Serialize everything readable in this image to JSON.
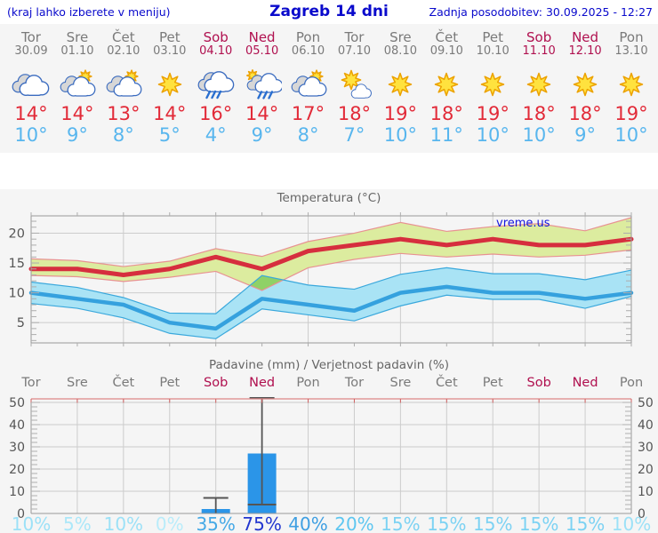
{
  "header": {
    "left_note": "(kraj lahko izberete v meniju)",
    "title": "Zagreb 14 dni",
    "updated": "Zadnja posodobitev: 30.09.2025 - 12:27"
  },
  "ui_colors": {
    "weekday": "#7a7a7a",
    "weekend": "#b0104f",
    "tmax": "#e22a38",
    "tmin": "#58b6ee",
    "header_text": "#0a0acc",
    "axis_label": "#555555",
    "grid": "#cccccc",
    "frame": "#999999"
  },
  "days": [
    {
      "name": "Tor",
      "date": "30.09",
      "weekend": false,
      "icon": "cloudy",
      "tmax": "14°",
      "tmin": "10°"
    },
    {
      "name": "Sre",
      "date": "01.10",
      "weekend": false,
      "icon": "partly",
      "tmax": "14°",
      "tmin": "9°"
    },
    {
      "name": "Čet",
      "date": "02.10",
      "weekend": false,
      "icon": "partly",
      "tmax": "13°",
      "tmin": "8°"
    },
    {
      "name": "Pet",
      "date": "03.10",
      "weekend": false,
      "icon": "sunny",
      "tmax": "14°",
      "tmin": "5°"
    },
    {
      "name": "Sob",
      "date": "04.10",
      "weekend": true,
      "icon": "rain",
      "tmax": "16°",
      "tmin": "4°"
    },
    {
      "name": "Ned",
      "date": "05.10",
      "weekend": true,
      "icon": "sun-rain",
      "tmax": "14°",
      "tmin": "9°"
    },
    {
      "name": "Pon",
      "date": "06.10",
      "weekend": false,
      "icon": "partly",
      "tmax": "17°",
      "tmin": "8°"
    },
    {
      "name": "Tor",
      "date": "07.10",
      "weekend": false,
      "icon": "mostly-sunny",
      "tmax": "18°",
      "tmin": "7°"
    },
    {
      "name": "Sre",
      "date": "08.10",
      "weekend": false,
      "icon": "sunny",
      "tmax": "19°",
      "tmin": "10°"
    },
    {
      "name": "Čet",
      "date": "09.10",
      "weekend": false,
      "icon": "sunny",
      "tmax": "18°",
      "tmin": "11°"
    },
    {
      "name": "Pet",
      "date": "10.10",
      "weekend": false,
      "icon": "sunny",
      "tmax": "19°",
      "tmin": "10°"
    },
    {
      "name": "Sob",
      "date": "11.10",
      "weekend": true,
      "icon": "sunny",
      "tmax": "18°",
      "tmin": "10°"
    },
    {
      "name": "Ned",
      "date": "12.10",
      "weekend": true,
      "icon": "sunny",
      "tmax": "18°",
      "tmin": "9°"
    },
    {
      "name": "Pon",
      "date": "13.10",
      "weekend": false,
      "icon": "sunny",
      "tmax": "19°",
      "tmin": "10°"
    }
  ],
  "chart_data": [
    {
      "type": "line",
      "title": "Temperatura (°C)",
      "watermark": "vreme.us",
      "ylim": [
        1.6,
        22.9
      ],
      "yticks": [
        5,
        10,
        15,
        20
      ],
      "grid_day_indexes": [
        2,
        4,
        6,
        8,
        10,
        12
      ],
      "series": [
        {
          "name": "max-temperature",
          "color": "#d62e3e",
          "width": 5,
          "values": [
            14,
            14,
            13,
            14,
            16,
            14,
            17,
            18,
            19,
            18,
            19,
            18,
            18,
            19
          ]
        },
        {
          "name": "min-temperature",
          "color": "#35a1de",
          "width": 4.5,
          "values": [
            10,
            9,
            8,
            5,
            4,
            9,
            8,
            7,
            10,
            11,
            10,
            10,
            9,
            10
          ]
        }
      ],
      "bands": [
        {
          "name": "max-range",
          "fill": "#dcec9f",
          "edge": "#e89292",
          "upper": [
            15.7,
            15.4,
            14.4,
            15.3,
            17.4,
            16.1,
            18.6,
            20.0,
            21.8,
            20.3,
            21.1,
            21.6,
            20.4,
            22.6
          ],
          "lower": [
            12.9,
            12.7,
            11.9,
            12.6,
            13.6,
            10.4,
            14.2,
            15.6,
            16.6,
            16.0,
            16.5,
            16.0,
            16.3,
            17.2
          ]
        },
        {
          "name": "min-range",
          "fill": "#a9e3f5",
          "edge": "#3aa8dc",
          "upper": [
            11.8,
            10.9,
            9.2,
            6.6,
            6.5,
            12.9,
            11.3,
            10.6,
            13.1,
            14.2,
            13.2,
            13.2,
            12.2,
            13.8
          ],
          "lower": [
            8.2,
            7.4,
            5.8,
            3.2,
            2.3,
            7.3,
            6.3,
            5.3,
            7.8,
            9.6,
            8.9,
            8.9,
            7.4,
            9.4
          ]
        }
      ],
      "overlap_color": "#8fd167"
    },
    {
      "type": "bar",
      "title": "Padavine (mm) / Verjetnost padavin (%)",
      "categories": [
        "Tor",
        "Sre",
        "Čet",
        "Pet",
        "Sob",
        "Ned",
        "Pon",
        "Tor",
        "Sre",
        "Čet",
        "Pet",
        "Sob",
        "Ned",
        "Pon"
      ],
      "values": [
        0,
        0,
        0,
        0,
        2,
        27,
        0,
        0,
        0,
        0,
        0,
        0,
        0,
        0
      ],
      "error_low": [
        null,
        null,
        null,
        null,
        0,
        4,
        null,
        null,
        null,
        null,
        null,
        null,
        null,
        null
      ],
      "error_high": [
        null,
        null,
        null,
        null,
        7,
        52,
        null,
        null,
        null,
        null,
        null,
        null,
        null,
        null
      ],
      "ylim": [
        0,
        51.6
      ],
      "yticks": [
        0,
        10,
        20,
        30,
        40,
        50
      ],
      "bar_color": "#2b95e8",
      "whisker_color": "#555555",
      "top_border_color": "#dd8888",
      "probabilities": {
        "labels": [
          "10%",
          "5%",
          "10%",
          "0%",
          "35%",
          "75%",
          "40%",
          "20%",
          "15%",
          "15%",
          "15%",
          "15%",
          "15%",
          "10%"
        ],
        "values": [
          10,
          5,
          10,
          0,
          35,
          75,
          40,
          20,
          15,
          15,
          15,
          15,
          15,
          10
        ],
        "colors": [
          "#9ce1f7",
          "#abe7f9",
          "#9ce1f7",
          "#b9ecfa",
          "#45a9e6",
          "#2236cf",
          "#3f9fe2",
          "#5ec6f0",
          "#7cd2f3",
          "#7cd2f3",
          "#7cd2f3",
          "#7cd2f3",
          "#7cd2f3",
          "#9ce1f7"
        ]
      }
    }
  ]
}
